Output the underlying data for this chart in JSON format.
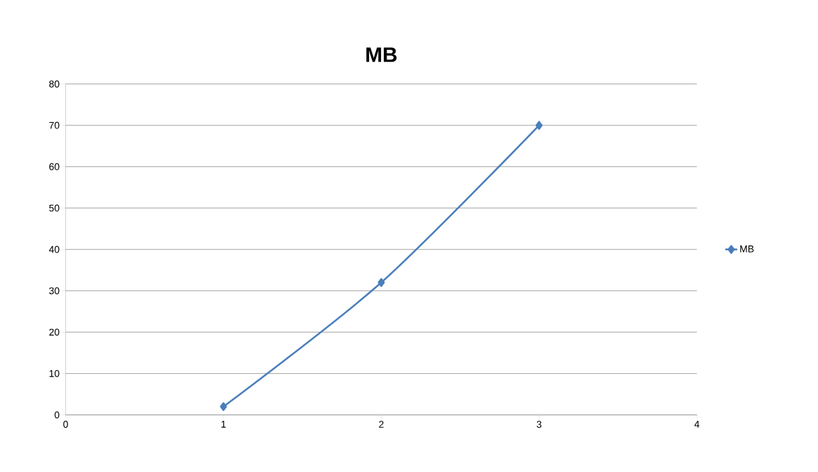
{
  "chart_data": {
    "type": "line",
    "title": "MB",
    "x": [
      1,
      2,
      3
    ],
    "series": [
      {
        "name": "MB",
        "color": "#4a7ebb",
        "values": [
          2,
          32,
          70
        ]
      }
    ],
    "xlim": [
      0,
      4
    ],
    "xticks": [
      0,
      1,
      2,
      3,
      4
    ],
    "ylim": [
      0,
      80
    ],
    "yticks": [
      0,
      10,
      20,
      30,
      40,
      50,
      60,
      70,
      80
    ],
    "grid": "y",
    "legend": "right",
    "marker": "diamond",
    "line_style": "solid"
  }
}
